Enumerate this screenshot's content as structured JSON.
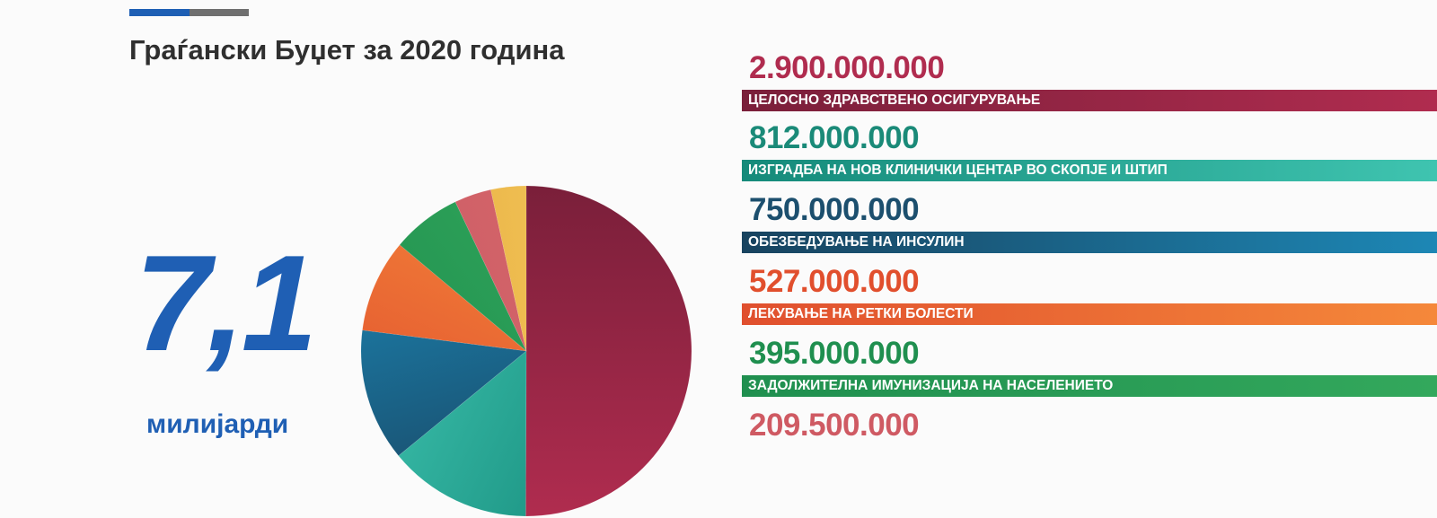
{
  "header": {
    "title": "Граѓански Буџет за 2020 година"
  },
  "total": {
    "value": "7,1",
    "unit": "милијарди"
  },
  "colors": {
    "accent_blue": "#1e5fb4",
    "accent_gray": "#6f6f6f",
    "big_number": "#1f5fb4"
  },
  "chart_data": {
    "type": "pie",
    "title": "",
    "unit_total": "7,1 милијарди",
    "series": [
      {
        "amount_label": "2.900.000.000",
        "value": 2900000000,
        "label": "ЦЕЛОСНО ЗДРАВСТВЕНО ОСИГУРУВАЊЕ",
        "color_start": "#7a1f3a",
        "color_end": "#b02c4f",
        "text_color": "#b02c4f"
      },
      {
        "amount_label": "812.000.000",
        "value": 812000000,
        "label": "ИЗГРАДБА НА НОВ КЛИНИЧКИ ЦЕНТАР ВО СКОПЈЕ И ШТИП",
        "color_start": "#158a7a",
        "color_end": "#3fc4b0",
        "text_color": "#1a8a78"
      },
      {
        "amount_label": "750.000.000",
        "value": 750000000,
        "label": "ОБЕЗБЕДУВАЊЕ НА ИНСУЛИН",
        "color_start": "#18435f",
        "color_end": "#1d87b5",
        "text_color": "#1c4f6e"
      },
      {
        "amount_label": "527.000.000",
        "value": 527000000,
        "label": "ЛЕКУВАЊЕ НА РЕТКИ БОЛЕСТИ",
        "color_start": "#e04f2e",
        "color_end": "#f5883a",
        "text_color": "#e14f2d"
      },
      {
        "amount_label": "395.000.000",
        "value": 395000000,
        "label": "ЗАДОЛЖИТЕЛНА ИМУНИЗАЦИЈА НА НАСЕЛЕНИЕТО",
        "color_start": "#1f8f4f",
        "color_end": "#33a85c",
        "text_color": "#1f8f4f"
      },
      {
        "amount_label": "209.500.000",
        "value": 209500000,
        "label": "",
        "color_start": "#c95b62",
        "color_end": "#d9686e",
        "text_color": "#cf5a63"
      },
      {
        "amount_label": "",
        "value": 200000000,
        "label": "",
        "color_start": "#e8a83a",
        "color_end": "#f3cf64",
        "text_color": "#e8a83a"
      }
    ]
  }
}
